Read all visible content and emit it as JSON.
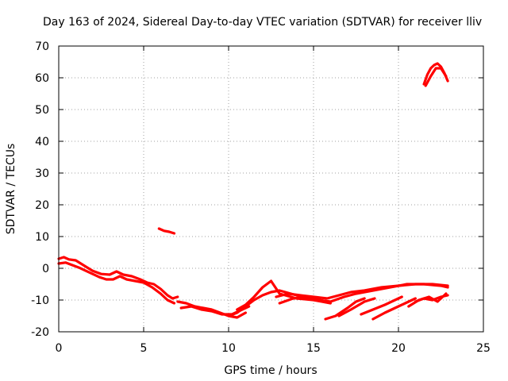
{
  "chart_data": {
    "type": "scatter",
    "title": "Day 163 of 2024, Sidereal Day-to-day VTEC variation (SDTVAR) for receiver lliv",
    "xlabel": "GPS time / hours",
    "ylabel": "SDTVAR / TECUs",
    "xlim": [
      0,
      25
    ],
    "ylim": [
      -20,
      70
    ],
    "xticks": [
      0,
      5,
      10,
      15,
      20,
      25
    ],
    "yticks": [
      -20,
      -10,
      0,
      10,
      20,
      30,
      40,
      50,
      60,
      70
    ],
    "xtick_labels": [
      "0",
      "5",
      "10",
      "15",
      "20",
      "25"
    ],
    "ytick_labels": [
      "-20",
      "-10",
      "0",
      "10",
      "20",
      "30",
      "40",
      "50",
      "60",
      "70"
    ],
    "grid": true,
    "color": "#ff0000",
    "series": [
      {
        "name": "trace-main-upper",
        "x": [
          0,
          0.3,
          0.6,
          1.0,
          1.3,
          1.6,
          2.0,
          2.5,
          3.0,
          3.4,
          3.8,
          4.3,
          4.8,
          5.2,
          5.6,
          6.0,
          6.4,
          6.7,
          7.0
        ],
        "y": [
          3.0,
          3.5,
          2.8,
          2.5,
          1.5,
          0.5,
          -0.8,
          -1.8,
          -2.0,
          -1.0,
          -2.0,
          -2.5,
          -3.5,
          -4.5,
          -5.0,
          -6.5,
          -8.5,
          -9.5,
          -9.0
        ]
      },
      {
        "name": "trace-main-lower",
        "x": [
          0,
          0.4,
          0.8,
          1.2,
          1.6,
          2.0,
          2.4,
          2.8,
          3.2,
          3.6,
          4.0,
          4.5,
          5.0,
          5.5,
          6.0,
          6.4,
          6.8
        ],
        "y": [
          1.5,
          1.8,
          1.0,
          0.2,
          -0.8,
          -1.8,
          -2.8,
          -3.5,
          -3.5,
          -2.5,
          -3.5,
          -4.0,
          -4.5,
          -6.0,
          -8.0,
          -10.0,
          -11.0
        ]
      },
      {
        "name": "trace-midday",
        "x": [
          7.0,
          7.5,
          8.0,
          8.5,
          9.0,
          9.5,
          10.0,
          10.5,
          11.0
        ],
        "y": [
          -10.5,
          -11.0,
          -12.0,
          -12.5,
          -13.0,
          -14.0,
          -15.0,
          -15.5,
          -14.0
        ]
      },
      {
        "name": "trace-midday-2",
        "x": [
          7.2,
          7.8,
          8.4,
          9.0,
          9.6,
          10.2,
          10.8,
          11.2
        ],
        "y": [
          -12.5,
          -12.0,
          -13.0,
          -13.5,
          -14.5,
          -14.5,
          -13.0,
          -12.0
        ]
      },
      {
        "name": "trace-rise",
        "x": [
          10.0,
          10.5,
          11.0,
          11.5,
          12.0,
          12.5,
          13.0,
          14.0,
          15.0,
          15.8
        ],
        "y": [
          -15.0,
          -14.0,
          -12.0,
          -10.0,
          -8.5,
          -7.5,
          -7.0,
          -8.5,
          -9.5,
          -10.5
        ]
      },
      {
        "name": "trace-rise-2",
        "x": [
          10.5,
          11.0,
          11.5,
          12.0,
          12.5,
          13.0,
          14.0,
          15.0,
          16.0
        ],
        "y": [
          -13.0,
          -11.5,
          -9.0,
          -6.0,
          -4.0,
          -8.0,
          -9.5,
          -10.0,
          -11.0
        ]
      },
      {
        "name": "trace-afternoon",
        "x": [
          12.8,
          13.5,
          14.2,
          15.0,
          15.8,
          16.5,
          17.2,
          18.0,
          19.0,
          20.0,
          21.0,
          22.0,
          22.9
        ],
        "y": [
          -9.0,
          -8.0,
          -8.5,
          -9.0,
          -9.5,
          -8.5,
          -7.5,
          -7.0,
          -6.0,
          -5.5,
          -5.0,
          -5.0,
          -5.5
        ]
      },
      {
        "name": "trace-afternoon-2",
        "x": [
          13.0,
          13.8,
          14.5,
          15.2,
          16.0,
          16.8,
          17.5,
          18.5,
          19.5,
          20.5,
          21.5,
          22.5,
          22.9
        ],
        "y": [
          -11.0,
          -9.5,
          -9.0,
          -10.0,
          -10.5,
          -9.0,
          -8.0,
          -7.0,
          -6.0,
          -5.0,
          -5.0,
          -5.5,
          -6.0
        ]
      },
      {
        "name": "trace-late-1",
        "x": [
          15.7,
          16.3,
          17.0,
          17.5,
          18.0
        ],
        "y": [
          -16.0,
          -15.0,
          -12.5,
          -10.5,
          -9.5
        ]
      },
      {
        "name": "trace-late-2",
        "x": [
          16.5,
          17.2,
          18.0,
          18.6
        ],
        "y": [
          -15.0,
          -13.0,
          -10.5,
          -9.5
        ]
      },
      {
        "name": "trace-late-3",
        "x": [
          17.8,
          18.5,
          19.2,
          19.8,
          20.2
        ],
        "y": [
          -14.5,
          -13.0,
          -11.5,
          -10.0,
          -9.0
        ]
      },
      {
        "name": "trace-late-4",
        "x": [
          18.5,
          19.2,
          20.0,
          20.6,
          21.0
        ],
        "y": [
          -16.0,
          -14.0,
          -12.0,
          -10.5,
          -9.5
        ]
      },
      {
        "name": "trace-late-5",
        "x": [
          20.6,
          21.2,
          21.8,
          22.3,
          22.8
        ],
        "y": [
          -12.0,
          -10.0,
          -9.0,
          -10.5,
          -8.0
        ]
      },
      {
        "name": "trace-late-6",
        "x": [
          21.0,
          21.5,
          22.0,
          22.5,
          22.9
        ],
        "y": [
          -10.5,
          -9.5,
          -10.0,
          -9.0,
          -8.5
        ]
      },
      {
        "name": "trace-isolated-6h",
        "x": [
          5.9,
          6.2,
          6.5,
          6.8
        ],
        "y": [
          12.5,
          11.8,
          11.5,
          11.0
        ]
      },
      {
        "name": "trace-arc-22h",
        "x": [
          21.5,
          21.7,
          21.9,
          22.1,
          22.3,
          22.5,
          22.7,
          22.9
        ],
        "y": [
          58.0,
          61.0,
          63.0,
          64.0,
          64.5,
          63.5,
          61.5,
          59.0
        ]
      },
      {
        "name": "trace-arc-22h-b",
        "x": [
          21.6,
          21.9,
          22.2,
          22.5,
          22.8
        ],
        "y": [
          57.5,
          60.5,
          63.0,
          63.0,
          60.5
        ]
      }
    ]
  }
}
